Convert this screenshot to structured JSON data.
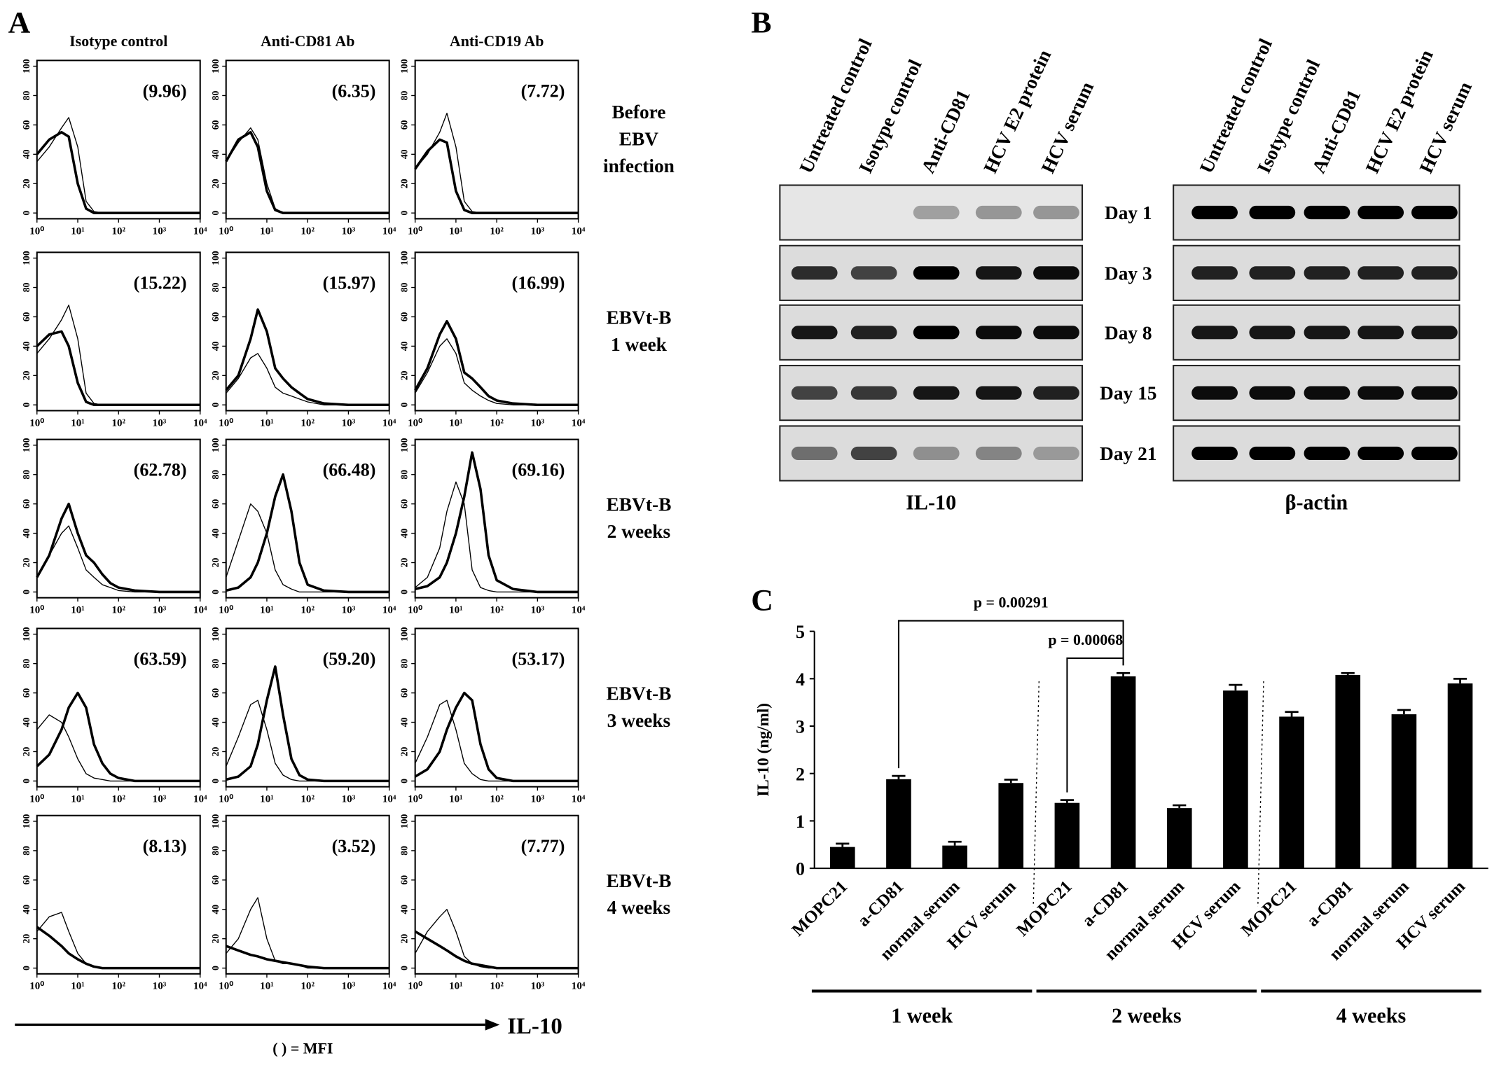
{
  "panel_a": {
    "label": "A",
    "columns": [
      "Isotype control",
      "Anti-CD81 Ab",
      "Anti-CD19 Ab"
    ],
    "x": [
      1,
      2,
      4,
      6,
      10,
      16,
      25,
      40,
      63,
      100,
      250,
      1000,
      10000
    ],
    "log_x": true,
    "xlim": [
      1,
      10000
    ],
    "xticks": [
      {
        "value": 1,
        "label": "10⁰"
      },
      {
        "value": 10,
        "label": "10¹"
      },
      {
        "value": 100,
        "label": "10²"
      },
      {
        "value": 1000,
        "label": "10³"
      },
      {
        "value": 10000,
        "label": "10⁴"
      }
    ],
    "ylim": [
      0,
      100
    ],
    "yticks": [
      0,
      20,
      40,
      60,
      80,
      100
    ],
    "x_axis_label": "IL-10",
    "footnote": "( ) = MFI",
    "rows": [
      {
        "label_lines": [
          "Before",
          "EBV",
          "infection"
        ],
        "histograms": [
          {
            "mfi": "(9.96)",
            "thick": [
              40,
              50,
              55,
              52,
              20,
              3,
              0,
              0,
              0,
              0,
              0,
              0,
              0
            ],
            "thin": [
              35,
              45,
              58,
              65,
              45,
              8,
              1,
              0,
              0,
              0,
              0,
              0,
              0
            ]
          },
          {
            "mfi": "(6.35)",
            "thick": [
              35,
              50,
              55,
              45,
              15,
              2,
              0,
              0,
              0,
              0,
              0,
              0,
              0
            ],
            "thin": [
              35,
              48,
              58,
              50,
              20,
              3,
              0,
              0,
              0,
              0,
              0,
              0,
              0
            ]
          },
          {
            "mfi": "(7.72)",
            "thick": [
              30,
              42,
              50,
              48,
              15,
              2,
              0,
              0,
              0,
              0,
              0,
              0,
              0
            ],
            "thin": [
              30,
              40,
              55,
              68,
              45,
              8,
              1,
              0,
              0,
              0,
              0,
              0,
              0
            ]
          }
        ]
      },
      {
        "label_lines": [
          "EBVt-B",
          "1 week"
        ],
        "histograms": [
          {
            "mfi": "(15.22)",
            "thick": [
              40,
              48,
              50,
              40,
              15,
              2,
              0,
              0,
              0,
              0,
              0,
              0,
              0
            ],
            "thin": [
              35,
              45,
              58,
              68,
              45,
              8,
              1,
              0,
              0,
              0,
              0,
              0,
              0
            ]
          },
          {
            "mfi": "(15.97)",
            "thick": [
              10,
              20,
              45,
              65,
              50,
              25,
              18,
              12,
              8,
              4,
              1,
              0,
              0
            ],
            "thin": [
              8,
              18,
              32,
              35,
              25,
              12,
              8,
              6,
              4,
              2,
              0,
              0,
              0
            ]
          },
          {
            "mfi": "(16.99)",
            "thick": [
              10,
              25,
              48,
              57,
              45,
              22,
              18,
              12,
              6,
              3,
              1,
              0,
              0
            ],
            "thin": [
              8,
              22,
              40,
              45,
              35,
              15,
              10,
              6,
              3,
              1,
              0,
              0,
              0
            ]
          }
        ]
      },
      {
        "label_lines": [
          "EBVt-B",
          "2 weeks"
        ],
        "histograms": [
          {
            "mfi": "(62.78)",
            "thick": [
              10,
              25,
              50,
              60,
              40,
              25,
              20,
              12,
              6,
              3,
              1,
              0,
              0
            ],
            "thin": [
              10,
              25,
              40,
              45,
              30,
              15,
              10,
              5,
              3,
              1,
              0,
              0,
              0
            ]
          },
          {
            "mfi": "(66.48)",
            "thick": [
              1,
              3,
              10,
              20,
              40,
              65,
              80,
              55,
              20,
              5,
              1,
              0,
              0
            ],
            "thin": [
              10,
              35,
              60,
              55,
              40,
              15,
              5,
              2,
              0,
              0,
              0,
              0,
              0
            ]
          },
          {
            "mfi": "(69.16)",
            "thick": [
              2,
              4,
              10,
              20,
              40,
              65,
              95,
              70,
              25,
              8,
              2,
              0,
              0
            ],
            "thin": [
              3,
              10,
              30,
              55,
              75,
              60,
              15,
              3,
              1,
              0,
              0,
              0,
              0
            ]
          }
        ]
      },
      {
        "label_lines": [
          "EBVt-B",
          "3 weeks"
        ],
        "histograms": [
          {
            "mfi": "(63.59)",
            "thick": [
              10,
              18,
              35,
              50,
              60,
              50,
              25,
              12,
              5,
              2,
              0,
              0,
              0
            ],
            "thin": [
              35,
              45,
              40,
              30,
              15,
              5,
              2,
              1,
              0,
              0,
              0,
              0,
              0
            ]
          },
          {
            "mfi": "(59.20)",
            "thick": [
              1,
              3,
              10,
              25,
              55,
              78,
              45,
              15,
              4,
              1,
              0,
              0,
              0
            ],
            "thin": [
              10,
              30,
              52,
              55,
              35,
              12,
              4,
              1,
              0,
              0,
              0,
              0,
              0
            ]
          },
          {
            "mfi": "(53.17)",
            "thick": [
              3,
              8,
              20,
              35,
              50,
              60,
              55,
              25,
              8,
              2,
              0,
              0,
              0
            ],
            "thin": [
              12,
              30,
              52,
              55,
              35,
              12,
              5,
              1,
              0,
              0,
              0,
              0,
              0
            ]
          }
        ]
      },
      {
        "label_lines": [
          "EBVt-B",
          "4 weeks"
        ],
        "histograms": [
          {
            "mfi": "(8.13)",
            "thick": [
              28,
              22,
              15,
              10,
              6,
              3,
              1,
              0,
              0,
              0,
              0,
              0,
              0
            ],
            "thin": [
              25,
              35,
              38,
              25,
              10,
              3,
              1,
              0,
              0,
              0,
              0,
              0,
              0
            ]
          },
          {
            "mfi": "(3.52)",
            "thick": [
              15,
              12,
              9,
              8,
              6,
              5,
              4,
              3,
              2,
              1,
              0,
              0,
              0
            ],
            "thin": [
              10,
              20,
              40,
              48,
              20,
              5,
              3,
              3,
              2,
              0,
              0,
              0,
              0
            ]
          },
          {
            "mfi": "(7.77)",
            "thick": [
              25,
              20,
              15,
              12,
              8,
              5,
              3,
              2,
              1,
              0,
              0,
              0,
              0
            ],
            "thin": [
              10,
              25,
              35,
              40,
              25,
              8,
              3,
              1,
              0,
              0,
              0,
              0,
              0
            ]
          }
        ]
      }
    ]
  },
  "panel_b": {
    "label": "B",
    "lanes": [
      "Untreated control",
      "Isotype control",
      "Anti-CD81",
      "HCV E2 protein",
      "HCV serum"
    ],
    "days": [
      "Day 1",
      "Day 3",
      "Day 8",
      "Day 15",
      "Day 21"
    ],
    "blots": [
      {
        "name": "IL-10",
        "band_intensity": [
          [
            0,
            0,
            0.3,
            0.35,
            0.35
          ],
          [
            0.8,
            0.7,
            1,
            0.9,
            0.95
          ],
          [
            0.9,
            0.85,
            1,
            0.95,
            0.95
          ],
          [
            0.7,
            0.75,
            0.9,
            0.9,
            0.85
          ],
          [
            0.5,
            0.7,
            0.35,
            0.4,
            0.3
          ]
        ]
      },
      {
        "name": "β-actin",
        "band_intensity": [
          [
            1,
            1,
            1,
            1,
            1
          ],
          [
            0.85,
            0.85,
            0.85,
            0.85,
            0.85
          ],
          [
            0.9,
            0.9,
            0.9,
            0.9,
            0.9
          ],
          [
            0.95,
            0.95,
            0.95,
            0.95,
            0.95
          ],
          [
            1,
            1,
            1,
            1,
            1
          ]
        ]
      }
    ]
  },
  "chart_data": {
    "type": "bar",
    "panel_label": "C",
    "categories": [
      "MOPC21",
      "a-CD81",
      "normal serum",
      "HCV serum",
      "MOPC21",
      "a-CD81",
      "normal serum",
      "HCV serum",
      "MOPC21",
      "a-CD81",
      "normal serum",
      "HCV serum"
    ],
    "groups": [
      "1 week",
      "2 weeks",
      "4 weeks"
    ],
    "values": [
      0.45,
      1.88,
      0.48,
      1.8,
      1.38,
      4.05,
      1.27,
      3.75,
      3.2,
      4.08,
      3.25,
      3.9
    ],
    "errors": [
      0.07,
      0.07,
      0.08,
      0.07,
      0.06,
      0.07,
      0.06,
      0.12,
      0.1,
      0.04,
      0.09,
      0.1
    ],
    "color": "#000000",
    "ylim": [
      0,
      5
    ],
    "yticks": [
      0,
      1,
      2,
      3,
      4,
      5
    ],
    "y_label": "IL-10 (ng/ml)",
    "annotations": [
      "p = 0.00291",
      "p = 0.00068"
    ]
  }
}
